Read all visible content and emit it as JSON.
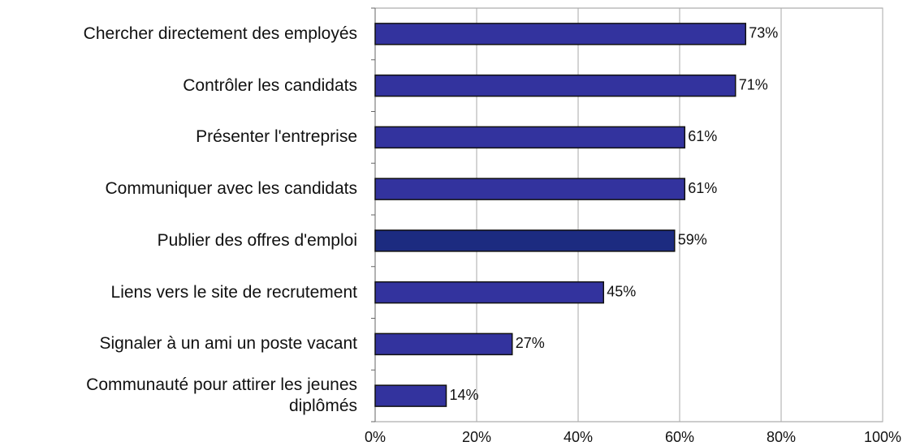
{
  "chart_data": {
    "type": "bar",
    "orientation": "horizontal",
    "categories": [
      "Chercher directement des employés",
      "Contrôler les candidats",
      "Présenter l'entreprise",
      "Communiquer avec les candidats",
      "Publier des offres d'emploi",
      "Liens vers le site de recrutement",
      "Signaler à un ami un poste vacant",
      "Communauté pour attirer les jeunes\ndiplômés"
    ],
    "values": [
      73,
      71,
      61,
      61,
      59,
      45,
      27,
      14
    ],
    "value_labels": [
      "73%",
      "71%",
      "61%",
      "61%",
      "59%",
      "45%",
      "27%",
      "14%"
    ],
    "colors": [
      "#33339e",
      "#33339e",
      "#33339e",
      "#33339e",
      "#1c2b80",
      "#33339e",
      "#33339e",
      "#33339e"
    ],
    "xlim": [
      0,
      100
    ],
    "xticks": [
      {
        "value": 0,
        "label": "0%"
      },
      {
        "value": 20,
        "label": "20%"
      },
      {
        "value": 40,
        "label": "40%"
      },
      {
        "value": 60,
        "label": "60%"
      },
      {
        "value": 80,
        "label": "80%"
      },
      {
        "value": 100,
        "label": "100%"
      }
    ],
    "grid": true
  }
}
